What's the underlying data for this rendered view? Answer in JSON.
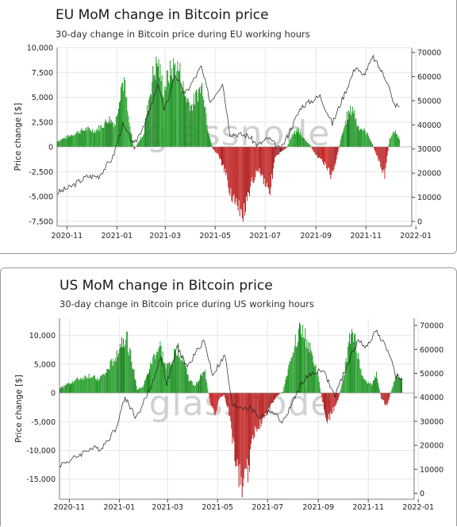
{
  "charts": [
    {
      "title": "EU MoM change in Bitcoin price",
      "subtitle": "30-day change in Bitcoin price during EU working hours",
      "watermark": "glassnode"
    },
    {
      "title": "US MoM change in Bitcoin price",
      "subtitle": "30-day change in Bitcoin price during US working hours",
      "watermark": "glassnode"
    }
  ],
  "chart_data": [
    {
      "type": "bar",
      "title": "EU MoM change in Bitcoin price",
      "subtitle": "30-day change in Bitcoin price during EU working hours",
      "ylabel": "Price change [$]",
      "y2label": "",
      "ylim": [
        -8000,
        10000
      ],
      "y2lim": [
        -2000,
        72000
      ],
      "yticks": [
        -7500,
        -5000,
        -2500,
        0,
        2500,
        5000,
        7500,
        10000
      ],
      "ytick_labels": [
        "-7,500",
        "-5,000",
        "-2,500",
        "0",
        "2,500",
        "5,000",
        "7,500",
        "10,000"
      ],
      "y2ticks": [
        0,
        10000,
        20000,
        30000,
        40000,
        50000,
        60000,
        70000
      ],
      "xlim": [
        "2020-10-20",
        "2021-12-27"
      ],
      "xticks": [
        "2020-11",
        "2021-01",
        "2021-03",
        "2021-05",
        "2021-07",
        "2021-09",
        "2021-11",
        "2022-01"
      ],
      "colors": {
        "positive": "#3aa83a",
        "negative": "#cc2a2a",
        "price_line": "#222222"
      },
      "grid": true,
      "legend": "none",
      "bar_series": {
        "name": "",
        "x_start": "2020-10-20",
        "step_days": 1,
        "anchor_values": [
          [
            "2020-10-20",
            600
          ],
          [
            "2020-10-28",
            900
          ],
          [
            "2020-11-05",
            1200
          ],
          [
            "2020-11-15",
            1600
          ],
          [
            "2020-11-25",
            1900
          ],
          [
            "2020-12-05",
            1700
          ],
          [
            "2020-12-15",
            2300
          ],
          [
            "2020-12-22",
            3000
          ],
          [
            "2020-12-30",
            2400
          ],
          [
            "2021-01-06",
            6500
          ],
          [
            "2021-01-10",
            7000
          ],
          [
            "2021-01-15",
            3000
          ],
          [
            "2021-01-22",
            -300
          ],
          [
            "2021-01-28",
            600
          ],
          [
            "2021-02-03",
            1500
          ],
          [
            "2021-02-08",
            4500
          ],
          [
            "2021-02-14",
            7500
          ],
          [
            "2021-02-20",
            9000
          ],
          [
            "2021-02-27",
            6000
          ],
          [
            "2021-03-05",
            7600
          ],
          [
            "2021-03-12",
            8600
          ],
          [
            "2021-03-18",
            8200
          ],
          [
            "2021-03-25",
            5500
          ],
          [
            "2021-04-02",
            4300
          ],
          [
            "2021-04-10",
            5800
          ],
          [
            "2021-04-16",
            6500
          ],
          [
            "2021-04-22",
            2000
          ],
          [
            "2021-04-28",
            -200
          ],
          [
            "2021-05-05",
            -900
          ],
          [
            "2021-05-12",
            -2500
          ],
          [
            "2021-05-19",
            -4500
          ],
          [
            "2021-05-26",
            -6200
          ],
          [
            "2021-06-02",
            -7400
          ],
          [
            "2021-06-09",
            -6200
          ],
          [
            "2021-06-16",
            -3500
          ],
          [
            "2021-06-23",
            -2300
          ],
          [
            "2021-06-30",
            -3600
          ],
          [
            "2021-07-07",
            -4600
          ],
          [
            "2021-07-13",
            -1200
          ],
          [
            "2021-07-20",
            -600
          ],
          [
            "2021-07-27",
            -100
          ],
          [
            "2021-08-03",
            1200
          ],
          [
            "2021-08-10",
            1800
          ],
          [
            "2021-08-17",
            900
          ],
          [
            "2021-08-24",
            300
          ],
          [
            "2021-08-31",
            -800
          ],
          [
            "2021-09-06",
            -1200
          ],
          [
            "2021-09-13",
            -2000
          ],
          [
            "2021-09-20",
            -3200
          ],
          [
            "2021-09-26",
            -1200
          ],
          [
            "2021-10-02",
            1000
          ],
          [
            "2021-10-09",
            3200
          ],
          [
            "2021-10-16",
            4200
          ],
          [
            "2021-10-22",
            2200
          ],
          [
            "2021-10-29",
            1800
          ],
          [
            "2021-11-05",
            1100
          ],
          [
            "2021-11-12",
            -400
          ],
          [
            "2021-11-18",
            -1800
          ],
          [
            "2021-11-24",
            -3000
          ],
          [
            "2021-11-30",
            900
          ],
          [
            "2021-12-06",
            1600
          ],
          [
            "2021-12-12",
            900
          ]
        ]
      },
      "price_series": {
        "name": "",
        "points": [
          [
            "2020-10-20",
            11800
          ],
          [
            "2020-11-05",
            14200
          ],
          [
            "2020-11-25",
            18500
          ],
          [
            "2020-12-10",
            18800
          ],
          [
            "2020-12-27",
            26500
          ],
          [
            "2021-01-08",
            40000
          ],
          [
            "2021-01-22",
            31500
          ],
          [
            "2021-02-08",
            44000
          ],
          [
            "2021-02-21",
            57000
          ],
          [
            "2021-02-28",
            45500
          ],
          [
            "2021-03-13",
            61000
          ],
          [
            "2021-03-25",
            52500
          ],
          [
            "2021-04-14",
            64000
          ],
          [
            "2021-04-25",
            49500
          ],
          [
            "2021-05-10",
            57500
          ],
          [
            "2021-05-19",
            36500
          ],
          [
            "2021-06-10",
            35500
          ],
          [
            "2021-06-22",
            31500
          ],
          [
            "2021-07-05",
            34500
          ],
          [
            "2021-07-20",
            29500
          ],
          [
            "2021-08-14",
            47500
          ],
          [
            "2021-09-06",
            52000
          ],
          [
            "2021-09-21",
            40500
          ],
          [
            "2021-10-06",
            53000
          ],
          [
            "2021-10-20",
            64500
          ],
          [
            "2021-10-28",
            60000
          ],
          [
            "2021-11-10",
            68000
          ],
          [
            "2021-11-28",
            57500
          ],
          [
            "2021-12-04",
            49000
          ],
          [
            "2021-12-12",
            47500
          ]
        ]
      }
    },
    {
      "type": "bar",
      "title": "US MoM change in Bitcoin price",
      "subtitle": "30-day change in Bitcoin price during US working hours",
      "ylabel": "Price change [$]",
      "y2label": "",
      "ylim": [
        -18500,
        13000
      ],
      "y2lim": [
        -2500,
        73000
      ],
      "yticks": [
        -15000,
        -10000,
        -5000,
        0,
        5000,
        10000
      ],
      "ytick_labels": [
        "-15,000",
        "-10,000",
        "-5,000",
        "0",
        "5,000",
        "10,000"
      ],
      "y2ticks": [
        0,
        10000,
        20000,
        30000,
        40000,
        50000,
        60000,
        70000
      ],
      "xlim": [
        "2020-10-20",
        "2021-12-27"
      ],
      "xticks": [
        "2020-11",
        "2021-01",
        "2021-03",
        "2021-05",
        "2021-07",
        "2021-09",
        "2021-11",
        "2022-01"
      ],
      "colors": {
        "positive": "#3aa83a",
        "negative": "#cc2a2a",
        "price_line": "#222222"
      },
      "grid": true,
      "legend": "none",
      "bar_series": {
        "name": "",
        "x_start": "2020-10-20",
        "step_days": 1,
        "anchor_values": [
          [
            "2020-10-20",
            800
          ],
          [
            "2020-10-28",
            1500
          ],
          [
            "2020-11-05",
            2100
          ],
          [
            "2020-11-15",
            2700
          ],
          [
            "2020-11-25",
            3200
          ],
          [
            "2020-12-05",
            2500
          ],
          [
            "2020-12-15",
            3500
          ],
          [
            "2020-12-25",
            6000
          ],
          [
            "2021-01-04",
            9500
          ],
          [
            "2021-01-10",
            10500
          ],
          [
            "2021-01-16",
            6000
          ],
          [
            "2021-01-23",
            600
          ],
          [
            "2021-01-30",
            1200
          ],
          [
            "2021-02-06",
            4000
          ],
          [
            "2021-02-13",
            7000
          ],
          [
            "2021-02-20",
            8500
          ],
          [
            "2021-02-27",
            4500
          ],
          [
            "2021-03-06",
            6000
          ],
          [
            "2021-03-13",
            8200
          ],
          [
            "2021-03-20",
            6500
          ],
          [
            "2021-03-27",
            2500
          ],
          [
            "2021-04-03",
            1300
          ],
          [
            "2021-04-10",
            3000
          ],
          [
            "2021-04-16",
            3800
          ],
          [
            "2021-04-22",
            -2000
          ],
          [
            "2021-04-28",
            -4000
          ],
          [
            "2021-05-03",
            -1000
          ],
          [
            "2021-05-09",
            -300
          ],
          [
            "2021-05-14",
            -3000
          ],
          [
            "2021-05-20",
            -9000
          ],
          [
            "2021-05-26",
            -15000
          ],
          [
            "2021-06-01",
            -16800
          ],
          [
            "2021-06-08",
            -13500
          ],
          [
            "2021-06-15",
            -7000
          ],
          [
            "2021-06-22",
            -5500
          ],
          [
            "2021-06-29",
            -4000
          ],
          [
            "2021-07-06",
            -2000
          ],
          [
            "2021-07-13",
            -500
          ],
          [
            "2021-07-20",
            300
          ],
          [
            "2021-07-27",
            5000
          ],
          [
            "2021-08-03",
            9500
          ],
          [
            "2021-08-10",
            11500
          ],
          [
            "2021-08-17",
            10000
          ],
          [
            "2021-08-24",
            7000
          ],
          [
            "2021-08-31",
            3500
          ],
          [
            "2021-09-06",
            -1500
          ],
          [
            "2021-09-12",
            -5000
          ],
          [
            "2021-09-18",
            -3500
          ],
          [
            "2021-09-25",
            -1500
          ],
          [
            "2021-10-02",
            3000
          ],
          [
            "2021-10-09",
            9500
          ],
          [
            "2021-10-16",
            10500
          ],
          [
            "2021-10-22",
            4500
          ],
          [
            "2021-10-29",
            2000
          ],
          [
            "2021-11-05",
            1500
          ],
          [
            "2021-11-11",
            3500
          ],
          [
            "2021-11-17",
            -1000
          ],
          [
            "2021-11-24",
            -2500
          ],
          [
            "2021-11-30",
            1000
          ],
          [
            "2021-12-06",
            3200
          ],
          [
            "2021-12-12",
            2500
          ]
        ]
      },
      "price_series": {
        "name": "",
        "points": [
          [
            "2020-10-20",
            11800
          ],
          [
            "2020-11-05",
            14200
          ],
          [
            "2020-11-25",
            18500
          ],
          [
            "2020-12-10",
            18800
          ],
          [
            "2020-12-27",
            26500
          ],
          [
            "2021-01-08",
            40000
          ],
          [
            "2021-01-22",
            31500
          ],
          [
            "2021-02-08",
            44000
          ],
          [
            "2021-02-21",
            57000
          ],
          [
            "2021-02-28",
            45500
          ],
          [
            "2021-03-13",
            61000
          ],
          [
            "2021-03-25",
            52500
          ],
          [
            "2021-04-14",
            64000
          ],
          [
            "2021-04-25",
            49500
          ],
          [
            "2021-05-10",
            57500
          ],
          [
            "2021-05-19",
            36500
          ],
          [
            "2021-06-10",
            35500
          ],
          [
            "2021-06-22",
            31500
          ],
          [
            "2021-07-05",
            34500
          ],
          [
            "2021-07-20",
            29500
          ],
          [
            "2021-08-14",
            47500
          ],
          [
            "2021-09-06",
            52000
          ],
          [
            "2021-09-21",
            40500
          ],
          [
            "2021-10-06",
            53000
          ],
          [
            "2021-10-20",
            64500
          ],
          [
            "2021-10-28",
            60000
          ],
          [
            "2021-11-10",
            68000
          ],
          [
            "2021-11-28",
            57500
          ],
          [
            "2021-12-04",
            49000
          ],
          [
            "2021-12-12",
            47500
          ]
        ]
      }
    }
  ]
}
